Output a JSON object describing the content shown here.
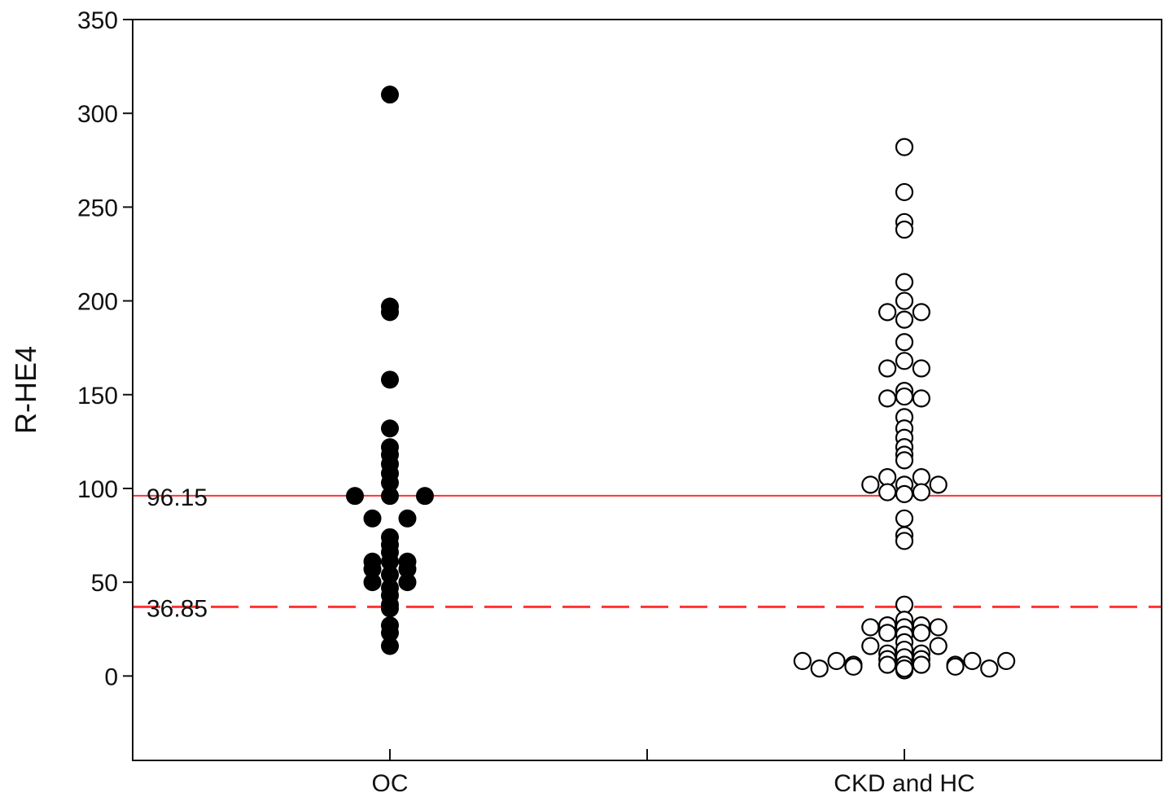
{
  "chart_data": {
    "type": "scatter",
    "title": "",
    "xlabel": "",
    "ylabel": "R-HE4",
    "ylim": [
      -45,
      350
    ],
    "xlim": [
      0.5,
      2.5
    ],
    "yticks": [
      0,
      50,
      100,
      150,
      200,
      250,
      300,
      350
    ],
    "categories": [
      "OC",
      "CKD and HC"
    ],
    "grid": false,
    "reference_lines": [
      {
        "value": 96.15,
        "label": "96.15",
        "style": "solid",
        "color": "#ff3333"
      },
      {
        "value": 36.85,
        "label": "36.85",
        "style": "dashed",
        "color": "#ff3333"
      }
    ],
    "series": [
      {
        "name": "OC",
        "marker": "filled",
        "color": "#000000",
        "points": [
          [
            1,
            310
          ],
          [
            1,
            197
          ],
          [
            1,
            194
          ],
          [
            1,
            158
          ],
          [
            1,
            132
          ],
          [
            1,
            122
          ],
          [
            1,
            118
          ],
          [
            1,
            113
          ],
          [
            1,
            108
          ],
          [
            1,
            103
          ],
          [
            1,
            96
          ],
          [
            0.932,
            96
          ],
          [
            1.068,
            96
          ],
          [
            0.966,
            84
          ],
          [
            1.034,
            84
          ],
          [
            1,
            74
          ],
          [
            1,
            70
          ],
          [
            1,
            66
          ],
          [
            1,
            61
          ],
          [
            0.966,
            61
          ],
          [
            1.034,
            61
          ],
          [
            0.966,
            57
          ],
          [
            1.034,
            57
          ],
          [
            1,
            54
          ],
          [
            0.966,
            50
          ],
          [
            1.034,
            50
          ],
          [
            1,
            47
          ],
          [
            1,
            43
          ],
          [
            1,
            38
          ],
          [
            1,
            36
          ],
          [
            1,
            27
          ],
          [
            1,
            23
          ],
          [
            1,
            16
          ]
        ]
      },
      {
        "name": "CKD and HC",
        "marker": "open",
        "color": "#000000",
        "points": [
          [
            2,
            282
          ],
          [
            2,
            258
          ],
          [
            2,
            242
          ],
          [
            2,
            238
          ],
          [
            2,
            210
          ],
          [
            2,
            200
          ],
          [
            1.967,
            194
          ],
          [
            2.033,
            194
          ],
          [
            2,
            190
          ],
          [
            2,
            178
          ],
          [
            2,
            168
          ],
          [
            1.967,
            164
          ],
          [
            2.033,
            164
          ],
          [
            2,
            152
          ],
          [
            2,
            149
          ],
          [
            1.967,
            148
          ],
          [
            2.033,
            148
          ],
          [
            2,
            138
          ],
          [
            2,
            132
          ],
          [
            2,
            127
          ],
          [
            2,
            122
          ],
          [
            2,
            118
          ],
          [
            2,
            115
          ],
          [
            1.967,
            106
          ],
          [
            2.033,
            106
          ],
          [
            2,
            102
          ],
          [
            1.934,
            102
          ],
          [
            2.066,
            102
          ],
          [
            1.967,
            98
          ],
          [
            2.033,
            98
          ],
          [
            2,
            97
          ],
          [
            2,
            84
          ],
          [
            2,
            75
          ],
          [
            2,
            72
          ],
          [
            2,
            38
          ],
          [
            2,
            30
          ],
          [
            2,
            26
          ],
          [
            1.967,
            27
          ],
          [
            2.033,
            27
          ],
          [
            1.934,
            26
          ],
          [
            2.066,
            26
          ],
          [
            1.967,
            23
          ],
          [
            2.033,
            23
          ],
          [
            2,
            22
          ],
          [
            2,
            18
          ],
          [
            1.934,
            16
          ],
          [
            2.066,
            16
          ],
          [
            2,
            14
          ],
          [
            1.967,
            12
          ],
          [
            2.033,
            12
          ],
          [
            2,
            10
          ],
          [
            1.967,
            9
          ],
          [
            2.033,
            9
          ],
          [
            2,
            6
          ],
          [
            2,
            3
          ],
          [
            1.901,
            6
          ],
          [
            2.099,
            6
          ],
          [
            1.868,
            8
          ],
          [
            2.132,
            8
          ],
          [
            1.835,
            4
          ],
          [
            2.165,
            4
          ],
          [
            1.802,
            8
          ],
          [
            2.198,
            8
          ],
          [
            1.967,
            6
          ],
          [
            2.033,
            6
          ],
          [
            2,
            4
          ],
          [
            1.901,
            5
          ],
          [
            2.099,
            5
          ]
        ]
      }
    ]
  }
}
